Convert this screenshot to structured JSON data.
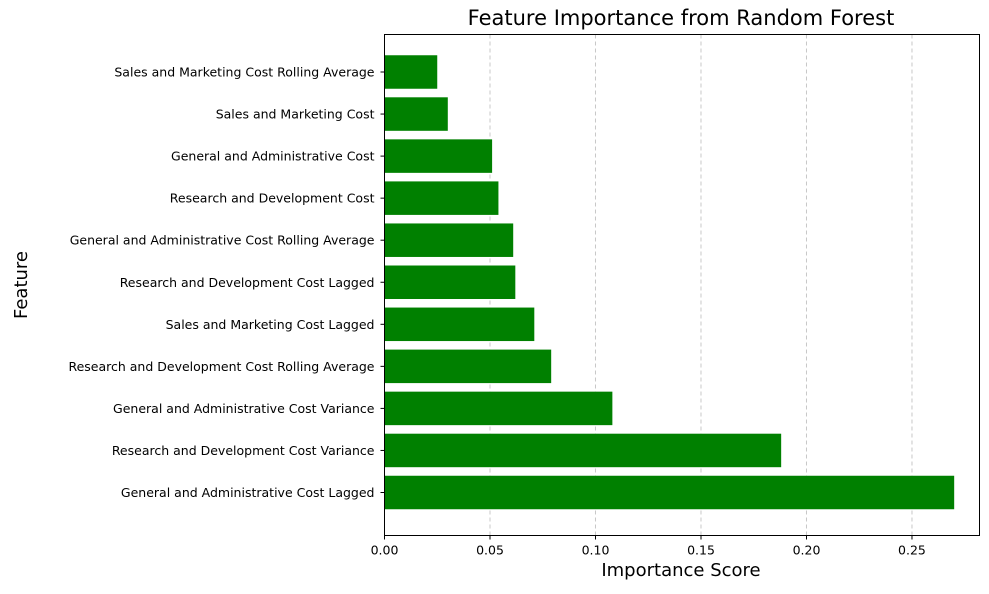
{
  "chart_data": {
    "type": "bar",
    "orientation": "horizontal",
    "title": "Feature Importance from Random Forest",
    "xlabel": "Importance Score",
    "ylabel": "Feature",
    "xlim": [
      0,
      0.282
    ],
    "xticks": [
      0.0,
      0.05,
      0.1,
      0.15,
      0.2,
      0.25
    ],
    "xtick_labels": [
      "0.00",
      "0.05",
      "0.10",
      "0.15",
      "0.20",
      "0.25"
    ],
    "grid": "x-dashed",
    "bar_color": "#008000",
    "grid_color": "#c8c8c8",
    "categories": [
      "General and Administrative Cost Lagged",
      "Research and Development Cost Variance",
      "General and Administrative Cost Variance",
      "Research and Development Cost Rolling Average",
      "Sales and Marketing Cost Lagged",
      "Research and Development Cost Lagged",
      "General and Administrative Cost Rolling Average",
      "Research and Development Cost",
      "General and Administrative Cost",
      "Sales and Marketing Cost",
      "Sales and Marketing Cost Rolling Average"
    ],
    "values": [
      0.27,
      0.188,
      0.108,
      0.079,
      0.071,
      0.062,
      0.061,
      0.054,
      0.051,
      0.03,
      0.025
    ]
  }
}
